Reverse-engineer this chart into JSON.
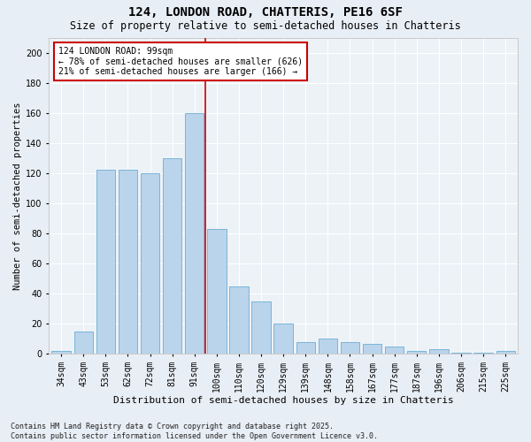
{
  "title1": "124, LONDON ROAD, CHATTERIS, PE16 6SF",
  "title2": "Size of property relative to semi-detached houses in Chatteris",
  "xlabel": "Distribution of semi-detached houses by size in Chatteris",
  "ylabel": "Number of semi-detached properties",
  "categories": [
    "34sqm",
    "43sqm",
    "53sqm",
    "62sqm",
    "72sqm",
    "81sqm",
    "91sqm",
    "100sqm",
    "110sqm",
    "120sqm",
    "129sqm",
    "139sqm",
    "148sqm",
    "158sqm",
    "167sqm",
    "177sqm",
    "187sqm",
    "196sqm",
    "206sqm",
    "215sqm",
    "225sqm"
  ],
  "values": [
    2,
    15,
    122,
    122,
    120,
    130,
    160,
    83,
    45,
    35,
    20,
    8,
    10,
    8,
    7,
    5,
    2,
    3,
    1,
    1,
    2
  ],
  "bar_color": "#bad4eb",
  "bar_edge_color": "#6aaed6",
  "highlight_color": "#cc0000",
  "annotation_title": "124 LONDON ROAD: 99sqm",
  "annotation_line1": "← 78% of semi-detached houses are smaller (626)",
  "annotation_line2": "21% of semi-detached houses are larger (166) →",
  "annotation_box_color": "#cc0000",
  "ylim": [
    0,
    210
  ],
  "yticks": [
    0,
    20,
    40,
    60,
    80,
    100,
    120,
    140,
    160,
    180,
    200
  ],
  "footer": "Contains HM Land Registry data © Crown copyright and database right 2025.\nContains public sector information licensed under the Open Government Licence v3.0.",
  "bg_color": "#e8eef5",
  "plot_bg_color": "#edf2f7",
  "grid_color": "#ffffff",
  "title1_fontsize": 10,
  "title2_fontsize": 8.5,
  "xlabel_fontsize": 8,
  "ylabel_fontsize": 7.5,
  "tick_fontsize": 7,
  "annotation_fontsize": 7,
  "footer_fontsize": 6
}
